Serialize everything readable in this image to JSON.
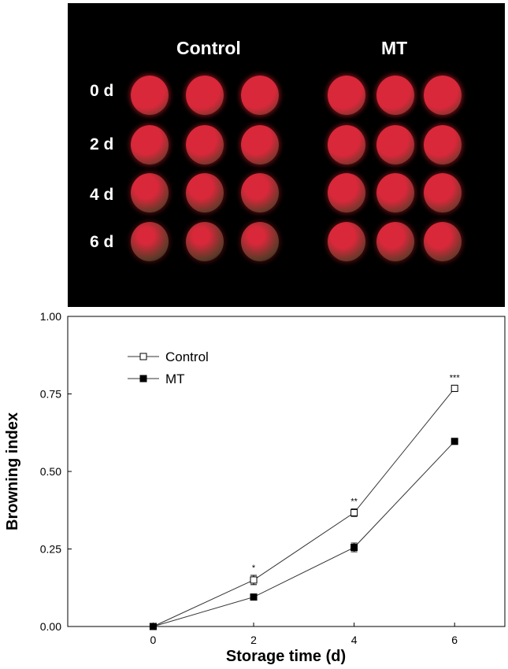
{
  "figure": {
    "photo_panel": {
      "group_labels": [
        "Control",
        "MT"
      ],
      "row_labels": [
        "0 d",
        "2 d",
        "4 d",
        "6 d"
      ],
      "fruits_per_group": 3
    }
  },
  "colors": {
    "panel_background": "#000000",
    "fruit_fresh": "#d8283a",
    "fruit_brown": "#5a3a28",
    "line": "#333333"
  },
  "chart_data": {
    "type": "line",
    "xlabel": "Storage time (d)",
    "ylabel": "Browning index",
    "x": [
      0,
      2,
      4,
      6
    ],
    "xlim": [
      -1.7,
      7
    ],
    "ylim": [
      0,
      1.0
    ],
    "xticks": [
      "0",
      "2",
      "4",
      "6"
    ],
    "yticks": [
      "0.00",
      "0.25",
      "0.50",
      "0.75",
      "1.00"
    ],
    "legend_position": "top-left",
    "series": [
      {
        "name": "Control",
        "marker": "open-square",
        "values": [
          0,
          0.15,
          0.367,
          0.768
        ],
        "errors": [
          0,
          0.015,
          0.012,
          0.01
        ],
        "significance": [
          "",
          "*",
          "**",
          "***"
        ]
      },
      {
        "name": "MT",
        "marker": "filled-square",
        "values": [
          0,
          0.095,
          0.255,
          0.597
        ],
        "errors": [
          0,
          0.008,
          0.014,
          0.006
        ]
      }
    ]
  }
}
